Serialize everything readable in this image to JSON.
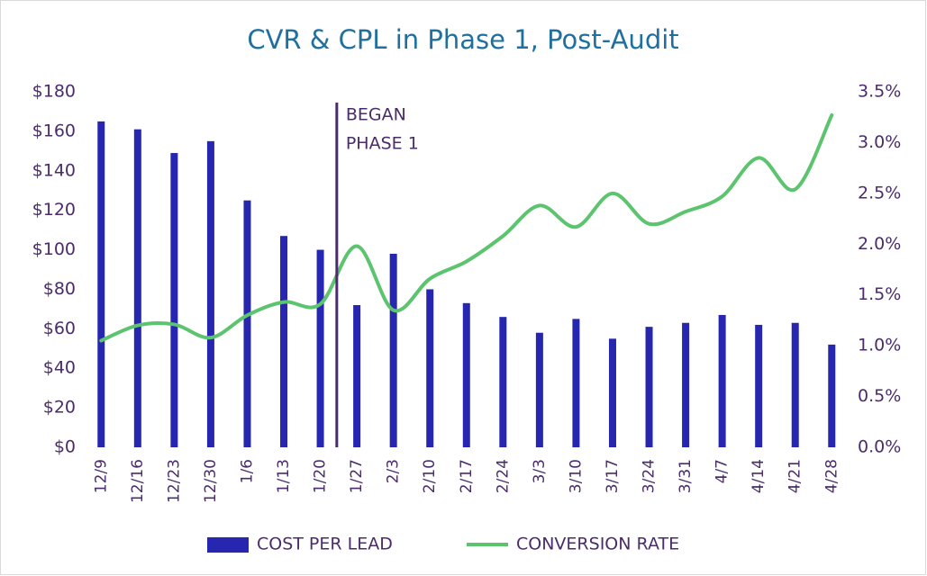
{
  "chart_data": {
    "type": "bar_line",
    "title": "CVR & CPL in Phase 1, Post-Audit",
    "categories": [
      "12/9",
      "12/16",
      "12/23",
      "12/30",
      "1/6",
      "1/13",
      "1/20",
      "1/27",
      "2/3",
      "2/10",
      "2/17",
      "2/24",
      "3/3",
      "3/10",
      "3/17",
      "3/24",
      "3/31",
      "4/7",
      "4/14",
      "4/21",
      "4/28"
    ],
    "series": [
      {
        "name": "COST PER LEAD",
        "type": "bar",
        "color": "#2626b0",
        "values": [
          165,
          161,
          149,
          155,
          125,
          107,
          100,
          72,
          98,
          80,
          73,
          66,
          58,
          65,
          55,
          61,
          63,
          67,
          62,
          63,
          52
        ]
      },
      {
        "name": "CONVERSION RATE",
        "type": "line",
        "axis": "y2",
        "color": "#5cc46e",
        "values": [
          1.05,
          1.2,
          1.21,
          1.08,
          1.3,
          1.43,
          1.41,
          1.98,
          1.35,
          1.66,
          1.83,
          2.08,
          2.38,
          2.17,
          2.5,
          2.2,
          2.32,
          2.47,
          2.85,
          2.54,
          3.27
        ]
      }
    ],
    "ylim": [
      0,
      180
    ],
    "yticks": [
      {
        "value": 0,
        "label": "$0"
      },
      {
        "value": 20,
        "label": "$20"
      },
      {
        "value": 40,
        "label": "$40"
      },
      {
        "value": 60,
        "label": "$60"
      },
      {
        "value": 80,
        "label": "$80"
      },
      {
        "value": 100,
        "label": "$100"
      },
      {
        "value": 120,
        "label": "$120"
      },
      {
        "value": 140,
        "label": "$140"
      },
      {
        "value": 160,
        "label": "$160"
      },
      {
        "value": 180,
        "label": "$180"
      }
    ],
    "y2lim": [
      0,
      3.5
    ],
    "y2ticks": [
      {
        "value": 0,
        "label": "0.0%"
      },
      {
        "value": 0.5,
        "label": "0.5%"
      },
      {
        "value": 1,
        "label": "1.0%"
      },
      {
        "value": 1.5,
        "label": "1.5%"
      },
      {
        "value": 2,
        "label": "2.0%"
      },
      {
        "value": 2.5,
        "label": "2.5%"
      },
      {
        "value": 3,
        "label": "3.0%"
      },
      {
        "value": 3.5,
        "label": "3.5%"
      }
    ],
    "annotation": {
      "lines": [
        "BEGAN",
        "PHASE 1"
      ],
      "color": "#4a2c6b"
    },
    "legend": "bottom"
  }
}
